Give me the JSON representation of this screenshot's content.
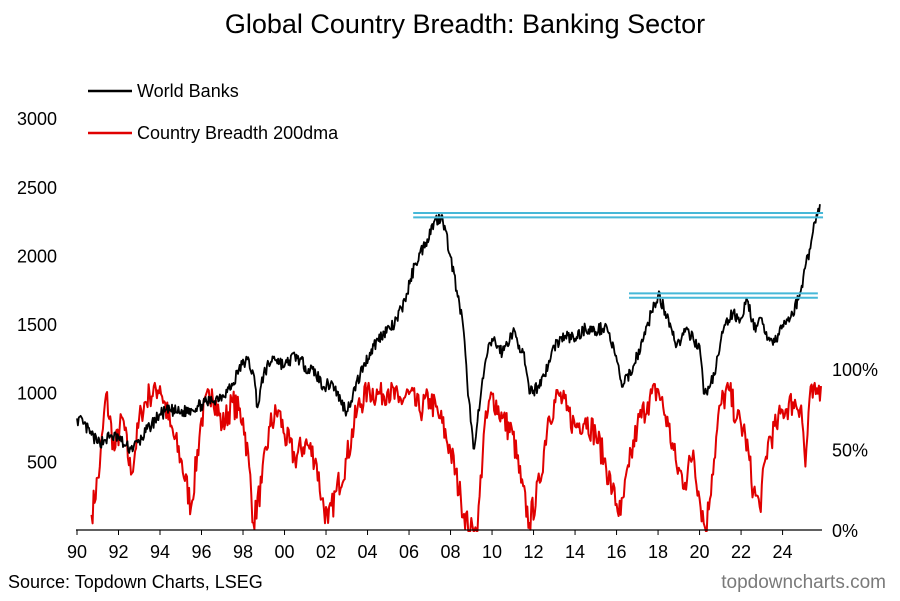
{
  "chart_data": {
    "type": "line",
    "title": "Global Country Breadth: Banking Sector",
    "source": "Source: Topdown Charts, LSEG",
    "brand": "topdowncharts.com",
    "x_axis": {
      "ticks": [
        "90",
        "92",
        "94",
        "96",
        "98",
        "00",
        "02",
        "04",
        "06",
        "08",
        "10",
        "12",
        "14",
        "16",
        "18",
        "20",
        "22",
        "24"
      ],
      "range": [
        1990,
        2025.9
      ]
    },
    "y_left": {
      "ticks": [
        500,
        1000,
        1500,
        2000,
        2500,
        3000
      ],
      "range": [
        0,
        3000
      ]
    },
    "y_right": {
      "ticks": [
        "0%",
        "50%",
        "100%"
      ],
      "range": [
        0,
        100
      ]
    },
    "legend": {
      "position": "top-left",
      "entries": [
        "World Banks",
        "Country Breadth 200dma"
      ]
    },
    "series": [
      {
        "name": "World Banks",
        "axis": "left",
        "color": "#000000",
        "points": [
          [
            1990.0,
            820
          ],
          [
            1990.3,
            780
          ],
          [
            1990.7,
            700
          ],
          [
            1991.0,
            640
          ],
          [
            1991.3,
            660
          ],
          [
            1991.6,
            690
          ],
          [
            1992.0,
            680
          ],
          [
            1992.3,
            620
          ],
          [
            1992.6,
            600
          ],
          [
            1993.0,
            650
          ],
          [
            1993.5,
            760
          ],
          [
            1994.0,
            850
          ],
          [
            1994.5,
            880
          ],
          [
            1995.0,
            860
          ],
          [
            1995.5,
            890
          ],
          [
            1996.0,
            920
          ],
          [
            1996.5,
            950
          ],
          [
            1997.0,
            990
          ],
          [
            1997.5,
            1060
          ],
          [
            1997.8,
            1180
          ],
          [
            1998.2,
            1250
          ],
          [
            1998.5,
            1150
          ],
          [
            1998.7,
            900
          ],
          [
            1999.0,
            1150
          ],
          [
            1999.5,
            1270
          ],
          [
            2000.0,
            1200
          ],
          [
            2000.5,
            1280
          ],
          [
            2001.0,
            1200
          ],
          [
            2001.5,
            1150
          ],
          [
            2001.9,
            1050
          ],
          [
            2002.3,
            1080
          ],
          [
            2002.7,
            950
          ],
          [
            2003.0,
            870
          ],
          [
            2003.3,
            1000
          ],
          [
            2003.8,
            1200
          ],
          [
            2004.3,
            1350
          ],
          [
            2004.8,
            1450
          ],
          [
            2005.3,
            1500
          ],
          [
            2005.8,
            1680
          ],
          [
            2006.3,
            1950
          ],
          [
            2006.8,
            2100
          ],
          [
            2007.2,
            2250
          ],
          [
            2007.6,
            2300
          ],
          [
            2008.0,
            2000
          ],
          [
            2008.3,
            1750
          ],
          [
            2008.6,
            1500
          ],
          [
            2008.8,
            1100
          ],
          [
            2009.1,
            600
          ],
          [
            2009.3,
            800
          ],
          [
            2009.7,
            1250
          ],
          [
            2010.0,
            1400
          ],
          [
            2010.5,
            1300
          ],
          [
            2011.0,
            1450
          ],
          [
            2011.5,
            1300
          ],
          [
            2011.8,
            1000
          ],
          [
            2012.2,
            1050
          ],
          [
            2012.7,
            1200
          ],
          [
            2013.0,
            1350
          ],
          [
            2013.5,
            1420
          ],
          [
            2014.0,
            1400
          ],
          [
            2014.5,
            1480
          ],
          [
            2015.0,
            1450
          ],
          [
            2015.5,
            1500
          ],
          [
            2015.9,
            1300
          ],
          [
            2016.3,
            1050
          ],
          [
            2016.8,
            1200
          ],
          [
            2017.3,
            1400
          ],
          [
            2017.7,
            1600
          ],
          [
            2018.0,
            1720
          ],
          [
            2018.5,
            1550
          ],
          [
            2018.9,
            1350
          ],
          [
            2019.3,
            1450
          ],
          [
            2019.7,
            1400
          ],
          [
            2020.0,
            1350
          ],
          [
            2020.2,
            1000
          ],
          [
            2020.5,
            1050
          ],
          [
            2020.8,
            1200
          ],
          [
            2021.2,
            1500
          ],
          [
            2021.6,
            1580
          ],
          [
            2022.0,
            1550
          ],
          [
            2022.3,
            1680
          ],
          [
            2022.7,
            1450
          ],
          [
            2023.0,
            1550
          ],
          [
            2023.3,
            1400
          ],
          [
            2023.7,
            1380
          ],
          [
            2024.0,
            1500
          ],
          [
            2024.4,
            1560
          ],
          [
            2024.8,
            1700
          ],
          [
            2025.0,
            1850
          ],
          [
            2025.3,
            2050
          ],
          [
            2025.55,
            2250
          ],
          [
            2025.8,
            2380
          ]
        ]
      },
      {
        "name": "Country Breadth 200dma",
        "axis": "right",
        "color": "#e00000",
        "points": [
          [
            1990.7,
            10
          ],
          [
            1991.1,
            40
          ],
          [
            1991.4,
            85
          ],
          [
            1991.8,
            50
          ],
          [
            1992.2,
            70
          ],
          [
            1992.6,
            35
          ],
          [
            1993.1,
            75
          ],
          [
            1993.5,
            85
          ],
          [
            1994.0,
            90
          ],
          [
            1994.5,
            65
          ],
          [
            1995.0,
            45
          ],
          [
            1995.5,
            15
          ],
          [
            1996.0,
            70
          ],
          [
            1996.5,
            88
          ],
          [
            1997.0,
            65
          ],
          [
            1997.5,
            80
          ],
          [
            1998.0,
            70
          ],
          [
            1998.3,
            40
          ],
          [
            1998.5,
            5
          ],
          [
            1998.9,
            30
          ],
          [
            1999.3,
            65
          ],
          [
            1999.7,
            75
          ],
          [
            2000.0,
            60
          ],
          [
            2000.5,
            45
          ],
          [
            2001.0,
            55
          ],
          [
            2001.5,
            45
          ],
          [
            2001.8,
            20
          ],
          [
            2002.1,
            5
          ],
          [
            2002.5,
            25
          ],
          [
            2003.0,
            45
          ],
          [
            2003.5,
            75
          ],
          [
            2004.0,
            88
          ],
          [
            2004.5,
            85
          ],
          [
            2005.0,
            88
          ],
          [
            2005.5,
            80
          ],
          [
            2006.0,
            85
          ],
          [
            2006.5,
            75
          ],
          [
            2007.0,
            82
          ],
          [
            2007.5,
            70
          ],
          [
            2008.0,
            50
          ],
          [
            2008.5,
            20
          ],
          [
            2008.9,
            0
          ],
          [
            2009.3,
            0
          ],
          [
            2009.6,
            60
          ],
          [
            2010.0,
            85
          ],
          [
            2010.5,
            70
          ],
          [
            2011.0,
            60
          ],
          [
            2011.4,
            30
          ],
          [
            2011.8,
            5
          ],
          [
            2012.3,
            30
          ],
          [
            2012.7,
            70
          ],
          [
            2013.2,
            85
          ],
          [
            2013.6,
            75
          ],
          [
            2014.0,
            65
          ],
          [
            2014.5,
            70
          ],
          [
            2015.0,
            60
          ],
          [
            2015.4,
            45
          ],
          [
            2015.8,
            25
          ],
          [
            2016.2,
            10
          ],
          [
            2016.6,
            40
          ],
          [
            2017.0,
            65
          ],
          [
            2017.5,
            80
          ],
          [
            2018.0,
            88
          ],
          [
            2018.5,
            65
          ],
          [
            2018.9,
            40
          ],
          [
            2019.3,
            30
          ],
          [
            2019.7,
            50
          ],
          [
            2020.0,
            20
          ],
          [
            2020.3,
            0
          ],
          [
            2020.6,
            35
          ],
          [
            2021.0,
            78
          ],
          [
            2021.4,
            88
          ],
          [
            2021.8,
            70
          ],
          [
            2022.2,
            60
          ],
          [
            2022.6,
            25
          ],
          [
            2022.9,
            15
          ],
          [
            2023.3,
            55
          ],
          [
            2023.7,
            65
          ],
          [
            2024.0,
            75
          ],
          [
            2024.5,
            80
          ],
          [
            2024.9,
            78
          ],
          [
            2025.1,
            40
          ],
          [
            2025.3,
            82
          ],
          [
            2025.6,
            85
          ],
          [
            2025.85,
            90
          ]
        ]
      }
    ],
    "annotations": {
      "color": "#46b8d8",
      "lines": [
        {
          "x": [
            2006.2,
            2025.95
          ],
          "y": 2300
        },
        {
          "x": [
            2016.6,
            2025.7
          ],
          "y": 1715
        }
      ]
    }
  }
}
